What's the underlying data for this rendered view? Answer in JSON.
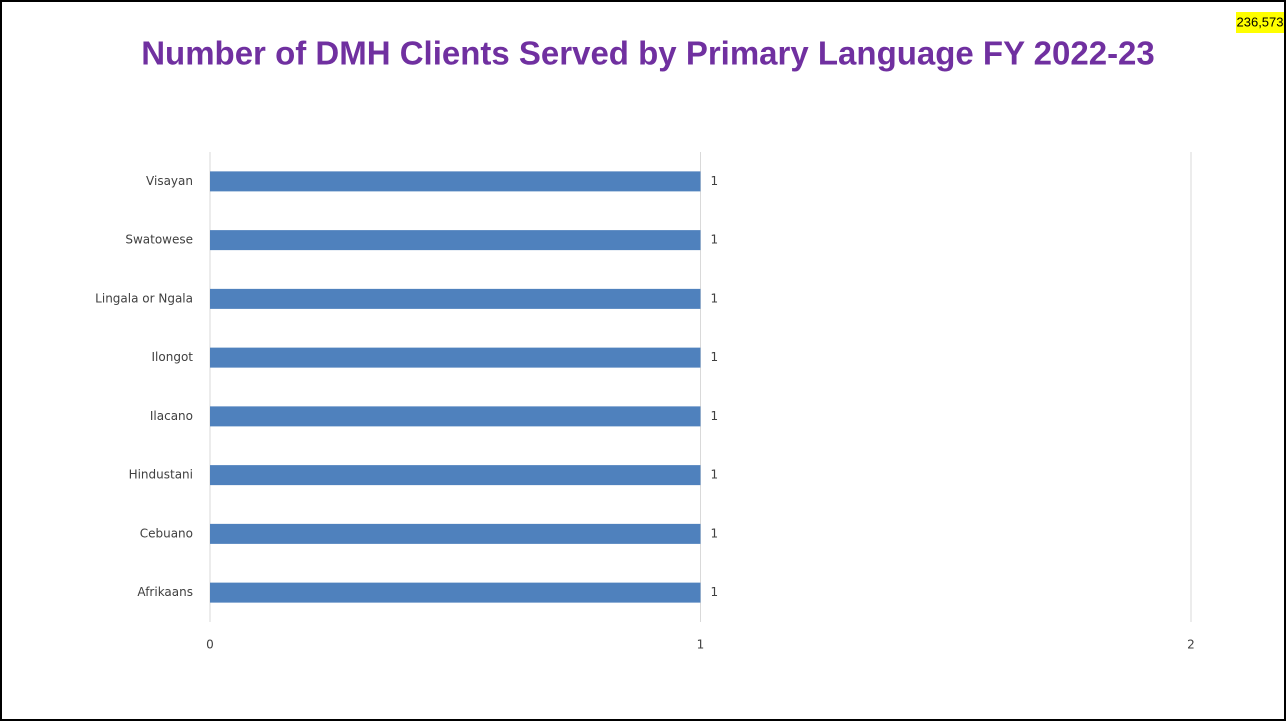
{
  "chart_data": {
    "type": "bar",
    "orientation": "horizontal",
    "title": "Number of DMH Clients Served by Primary Language FY 2022-23",
    "annotation": "236,573",
    "categories": [
      "Visayan",
      "Swatowese",
      "Lingala or Ngala",
      "Ilongot",
      "Ilacano",
      "Hindustani",
      "Cebuano",
      "Afrikaans"
    ],
    "values": [
      1,
      1,
      1,
      1,
      1,
      1,
      1,
      1
    ],
    "color": "#4f81bd",
    "xlim": [
      0,
      2
    ],
    "xticks": [
      0,
      1,
      2
    ],
    "grid": true
  }
}
